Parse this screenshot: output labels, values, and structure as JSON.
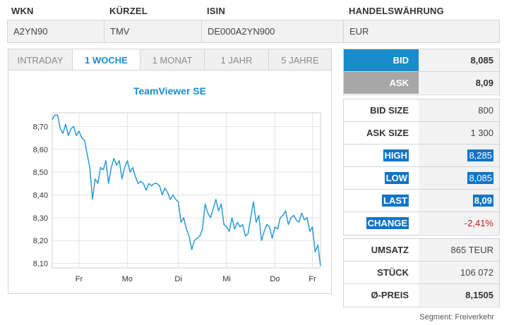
{
  "info": {
    "headers": {
      "wkn": "WKN",
      "kuerzel": "KÜRZEL",
      "isin": "ISIN",
      "waehrung": "HANDELSWÄHRUNG"
    },
    "values": {
      "wkn": "A2YN90",
      "kuerzel": "TMV",
      "isin": "DE000A2YN900",
      "waehrung": "EUR"
    }
  },
  "tabs": [
    {
      "label": "INTRADAY",
      "active": false
    },
    {
      "label": "1 WOCHE",
      "active": true
    },
    {
      "label": "1 MONAT",
      "active": false
    },
    {
      "label": "1 JAHR",
      "active": false
    },
    {
      "label": "5 JAHRE",
      "active": false
    }
  ],
  "quote": {
    "bid_label": "BID",
    "bid": "8,085",
    "ask_label": "ASK",
    "ask": "8,09",
    "bid_size_label": "BID SIZE",
    "bid_size": "800",
    "ask_size_label": "ASK SIZE",
    "ask_size": "1 300",
    "high_label": "HIGH",
    "high": "8,285",
    "low_label": "LOW",
    "low": "8,085",
    "last_label": "LAST",
    "last": "8,09",
    "change_label": "CHANGE",
    "change": "-2,41%"
  },
  "volume": {
    "umsatz_label": "UMSATZ",
    "umsatz": "865 TEUR",
    "stueck_label": "STÜCK",
    "stueck": "106 072",
    "preis_label": "Ø-PREIS",
    "preis": "8,1505"
  },
  "footer": "Segment: Freiverkehr",
  "colors": {
    "accent": "#1a8ccc",
    "highlight": "#1175c8",
    "ask_bg": "#a7a7a7",
    "negative": "#cc1a1a",
    "line": "#2a9ad6"
  },
  "chart_data": {
    "type": "line",
    "title": "TeamViewer SE",
    "ylim": [
      8.08,
      8.76
    ],
    "yticks": [
      8.1,
      8.2,
      8.3,
      8.4,
      8.5,
      8.6,
      8.7
    ],
    "ytick_labels": [
      "8,10",
      "8,20",
      "8,30",
      "8,40",
      "8,50",
      "8,60",
      "8,70"
    ],
    "xtick_labels": [
      "Fr",
      "Mo",
      "Di",
      "Mi",
      "Do",
      "Fr"
    ],
    "xtick_positions": [
      0.1,
      0.28,
      0.47,
      0.65,
      0.83,
      0.97
    ],
    "grid": true,
    "series": [
      {
        "x": [
          0.0,
          0.01,
          0.02,
          0.03,
          0.04,
          0.05,
          0.06,
          0.07,
          0.08,
          0.09,
          0.1,
          0.11,
          0.12,
          0.13,
          0.14,
          0.15,
          0.16,
          0.17,
          0.18,
          0.19,
          0.2,
          0.21,
          0.22,
          0.23,
          0.24,
          0.25,
          0.26,
          0.27,
          0.28,
          0.29,
          0.3,
          0.31,
          0.32,
          0.33,
          0.34,
          0.35,
          0.36,
          0.37,
          0.38,
          0.39,
          0.4,
          0.41,
          0.42,
          0.43,
          0.44,
          0.45,
          0.46,
          0.47,
          0.48,
          0.49,
          0.5,
          0.51,
          0.52,
          0.53,
          0.54,
          0.55,
          0.56,
          0.57,
          0.58,
          0.59,
          0.6,
          0.61,
          0.62,
          0.63,
          0.64,
          0.65,
          0.66,
          0.67,
          0.68,
          0.69,
          0.7,
          0.71,
          0.72,
          0.73,
          0.74,
          0.75,
          0.76,
          0.77,
          0.78,
          0.79,
          0.8,
          0.81,
          0.82,
          0.83,
          0.84,
          0.85,
          0.86,
          0.87,
          0.88,
          0.89,
          0.9,
          0.91,
          0.92,
          0.93,
          0.94,
          0.95,
          0.96,
          0.97,
          0.98,
          0.99,
          1.0
        ],
        "y": [
          8.73,
          8.75,
          8.75,
          8.69,
          8.67,
          8.71,
          8.66,
          8.69,
          8.7,
          8.66,
          8.68,
          8.65,
          8.64,
          8.58,
          8.52,
          8.38,
          8.47,
          8.45,
          8.52,
          8.51,
          8.55,
          8.45,
          8.52,
          8.56,
          8.53,
          8.55,
          8.47,
          8.52,
          8.55,
          8.5,
          8.52,
          8.48,
          8.45,
          8.46,
          8.45,
          8.42,
          8.45,
          8.44,
          8.45,
          8.45,
          8.44,
          8.4,
          8.43,
          8.41,
          8.38,
          8.4,
          8.38,
          8.37,
          8.28,
          8.3,
          8.25,
          8.22,
          8.16,
          8.2,
          8.21,
          8.22,
          8.25,
          8.36,
          8.32,
          8.3,
          8.34,
          8.38,
          8.33,
          8.36,
          8.27,
          8.26,
          8.24,
          8.3,
          8.25,
          8.28,
          8.26,
          8.27,
          8.22,
          8.23,
          8.3,
          8.37,
          8.28,
          8.31,
          8.2,
          8.24,
          8.27,
          8.26,
          8.21,
          8.26,
          8.25,
          8.3,
          8.31,
          8.33,
          8.27,
          8.3,
          8.31,
          8.29,
          8.28,
          8.32,
          8.29,
          8.3,
          8.24,
          8.26,
          8.15,
          8.18,
          8.09
        ]
      }
    ]
  }
}
